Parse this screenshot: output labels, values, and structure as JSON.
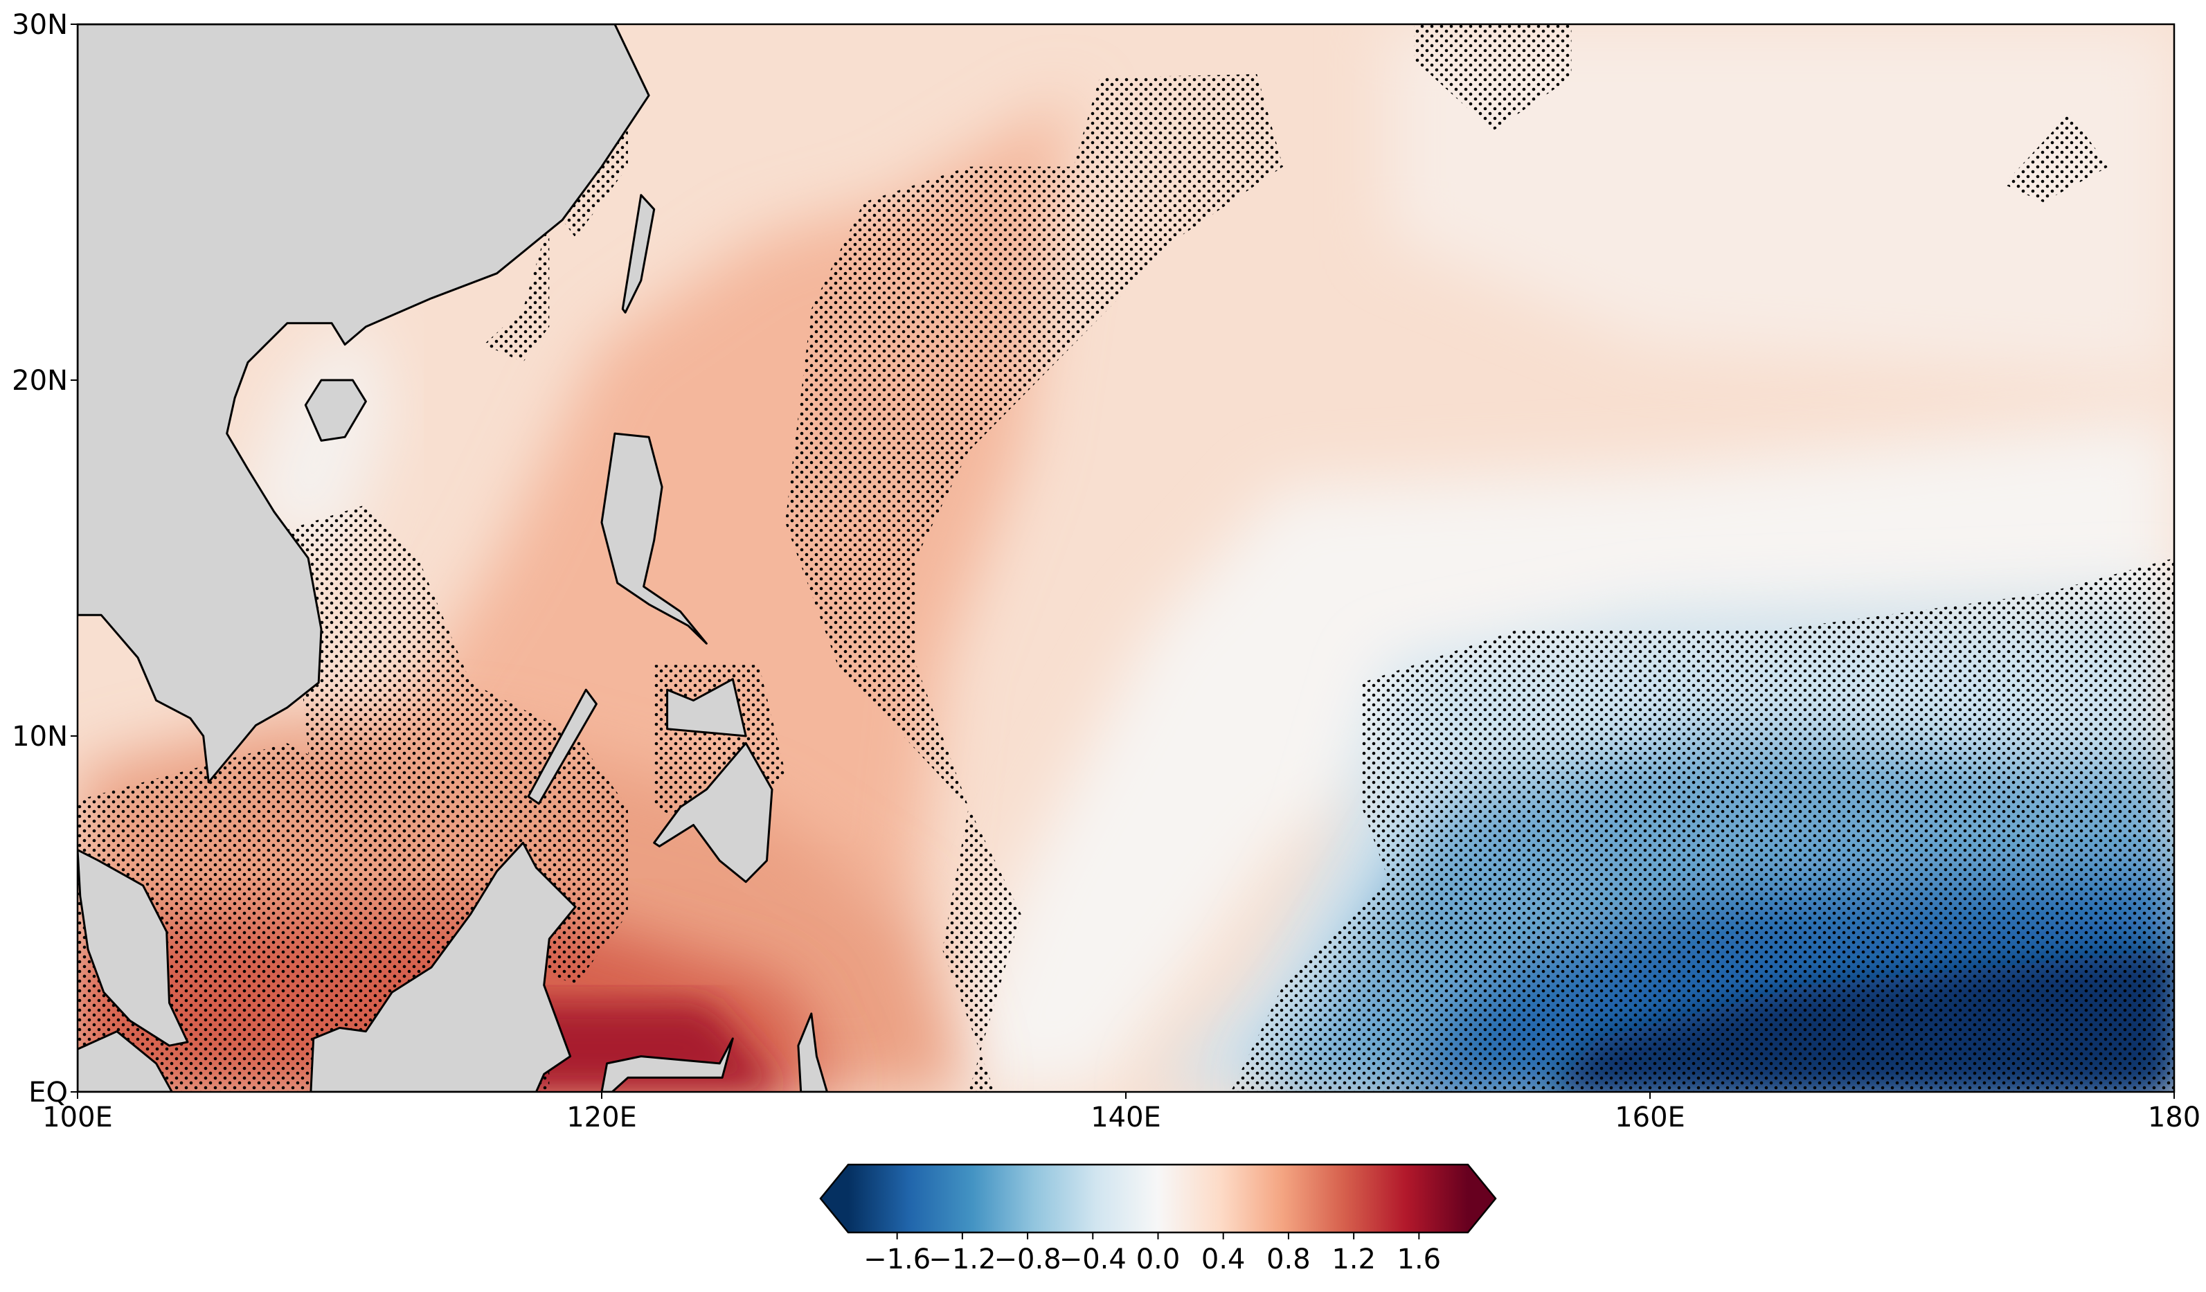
{
  "map": {
    "xlim": [
      100,
      180
    ],
    "ylim": [
      0,
      30
    ],
    "xticks": [
      {
        "value": 100,
        "label": "100E"
      },
      {
        "value": 120,
        "label": "120E"
      },
      {
        "value": 140,
        "label": "140E"
      },
      {
        "value": 160,
        "label": "160E"
      },
      180
    ],
    "yticks": [
      {
        "value": 0,
        "label": "EQ"
      },
      {
        "value": 10,
        "label": "10N"
      },
      {
        "value": 20,
        "label": "20N"
      },
      {
        "value": 30,
        "label": "30N"
      }
    ],
    "colorbar": {
      "lim": [
        -1.9,
        1.9
      ],
      "ticks": [
        {
          "value": -1.6,
          "label": "−1.6"
        },
        {
          "value": -1.2,
          "label": "−1.2"
        },
        {
          "value": -0.8,
          "label": "−0.8"
        },
        {
          "value": -0.4,
          "label": "−0.4"
        },
        {
          "value": 0,
          "label": "0.0"
        },
        0.4,
        0.8,
        1.2,
        1.6
      ],
      "colormap": [
        "#053061",
        "#2166ac",
        "#4393c3",
        "#92c5de",
        "#d1e5f0",
        "#f7f7f7",
        "#fddbc7",
        "#f4a582",
        "#d6604d",
        "#b2182b",
        "#67001f"
      ]
    }
  }
}
